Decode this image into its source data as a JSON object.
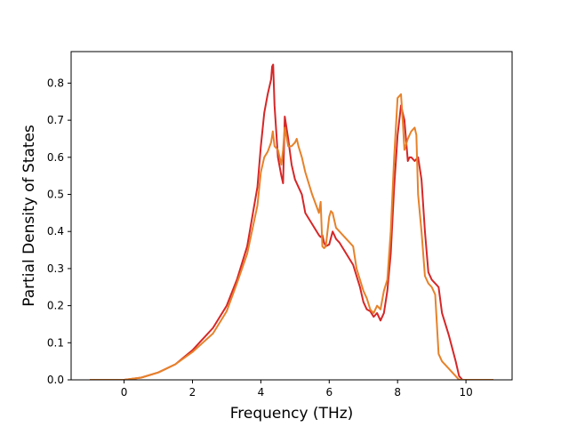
{
  "chart_data": {
    "type": "line",
    "xlabel": "Frequency (THz)",
    "ylabel": "Partial Density of States",
    "xlim": [
      -1.55,
      11.35
    ],
    "ylim": [
      0.0,
      0.885
    ],
    "xticks": [
      0,
      2,
      4,
      6,
      8,
      10
    ],
    "yticks": [
      0.0,
      0.1,
      0.2,
      0.3,
      0.4,
      0.5,
      0.6,
      0.7,
      0.8
    ],
    "grid": false,
    "series": [
      {
        "color": "#d62728",
        "x": [
          -1.0,
          0.0,
          0.5,
          1.0,
          1.5,
          2.0,
          2.3,
          2.6,
          3.0,
          3.3,
          3.6,
          3.9,
          4.0,
          4.1,
          4.2,
          4.3,
          4.33,
          4.36,
          4.4,
          4.5,
          4.6,
          4.65,
          4.7,
          4.8,
          4.9,
          5.0,
          5.1,
          5.2,
          5.3,
          5.5,
          5.7,
          5.75,
          5.8,
          5.85,
          5.9,
          6.0,
          6.1,
          6.2,
          6.3,
          6.5,
          6.7,
          6.8,
          6.9,
          7.0,
          7.1,
          7.2,
          7.3,
          7.4,
          7.5,
          7.6,
          7.7,
          7.8,
          7.9,
          8.0,
          8.1,
          8.15,
          8.2,
          8.3,
          8.35,
          8.4,
          8.5,
          8.6,
          8.7,
          8.8,
          8.9,
          9.0,
          9.1,
          9.2,
          9.3,
          9.5,
          9.7,
          9.8,
          9.9,
          10.8
        ],
        "y": [
          0.0,
          0.0,
          0.006,
          0.02,
          0.042,
          0.08,
          0.11,
          0.14,
          0.2,
          0.27,
          0.36,
          0.52,
          0.63,
          0.72,
          0.77,
          0.81,
          0.845,
          0.85,
          0.74,
          0.6,
          0.55,
          0.53,
          0.71,
          0.65,
          0.58,
          0.54,
          0.52,
          0.5,
          0.45,
          0.42,
          0.39,
          0.385,
          0.39,
          0.37,
          0.36,
          0.365,
          0.4,
          0.38,
          0.37,
          0.34,
          0.31,
          0.28,
          0.25,
          0.21,
          0.19,
          0.185,
          0.17,
          0.18,
          0.16,
          0.18,
          0.24,
          0.34,
          0.52,
          0.66,
          0.74,
          0.72,
          0.7,
          0.59,
          0.6,
          0.6,
          0.59,
          0.6,
          0.54,
          0.4,
          0.29,
          0.27,
          0.26,
          0.25,
          0.18,
          0.12,
          0.05,
          0.01,
          0.0,
          0.0
        ]
      },
      {
        "color": "#e6822a",
        "x": [
          -1.0,
          0.0,
          0.5,
          1.0,
          1.5,
          2.0,
          2.3,
          2.6,
          3.0,
          3.3,
          3.6,
          3.9,
          4.0,
          4.1,
          4.2,
          4.3,
          4.35,
          4.4,
          4.5,
          4.6,
          4.65,
          4.7,
          4.8,
          4.9,
          5.0,
          5.05,
          5.1,
          5.2,
          5.3,
          5.5,
          5.7,
          5.75,
          5.8,
          5.85,
          5.9,
          6.0,
          6.05,
          6.1,
          6.2,
          6.3,
          6.5,
          6.7,
          6.8,
          6.9,
          7.0,
          7.1,
          7.2,
          7.3,
          7.4,
          7.5,
          7.6,
          7.7,
          7.8,
          7.9,
          8.0,
          8.1,
          8.15,
          8.2,
          8.3,
          8.4,
          8.5,
          8.55,
          8.6,
          8.7,
          8.8,
          8.9,
          9.0,
          9.1,
          9.2,
          9.3,
          9.5,
          9.7,
          9.8,
          9.9,
          10.8
        ],
        "y": [
          0.0,
          0.0,
          0.006,
          0.02,
          0.042,
          0.075,
          0.1,
          0.125,
          0.185,
          0.26,
          0.34,
          0.47,
          0.56,
          0.6,
          0.615,
          0.64,
          0.67,
          0.63,
          0.62,
          0.58,
          0.62,
          0.68,
          0.63,
          0.63,
          0.64,
          0.65,
          0.63,
          0.6,
          0.56,
          0.5,
          0.45,
          0.48,
          0.36,
          0.355,
          0.36,
          0.44,
          0.455,
          0.45,
          0.41,
          0.4,
          0.38,
          0.36,
          0.3,
          0.27,
          0.24,
          0.22,
          0.19,
          0.18,
          0.2,
          0.19,
          0.24,
          0.27,
          0.4,
          0.6,
          0.76,
          0.77,
          0.7,
          0.62,
          0.65,
          0.67,
          0.68,
          0.66,
          0.5,
          0.4,
          0.28,
          0.26,
          0.25,
          0.23,
          0.07,
          0.05,
          0.03,
          0.01,
          0.0,
          0.0,
          0.0
        ]
      }
    ]
  }
}
